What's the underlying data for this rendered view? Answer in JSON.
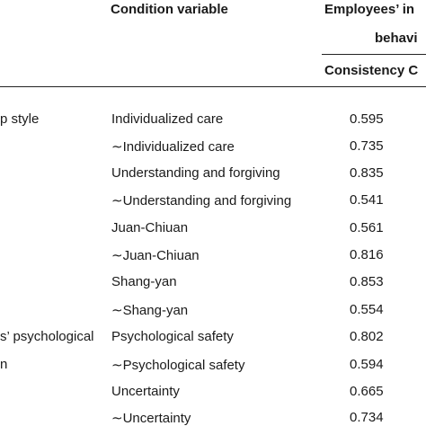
{
  "header": {
    "condition_variable": "Condition variable",
    "outcome_line1": "Employees’ in",
    "outcome_line2": "behavi",
    "consistency": "Consistency C"
  },
  "categories": [
    {
      "label": "p style"
    },
    {
      "label": "s’ psychological"
    },
    {
      "label": "n"
    }
  ],
  "rows": [
    {
      "condition": "Individualized care",
      "value": "0.595"
    },
    {
      "condition": "∼Individualized care",
      "value": "0.735"
    },
    {
      "condition": "Understanding and forgiving",
      "value": "0.835"
    },
    {
      "condition": "∼Understanding and forgiving",
      "value": "0.541"
    },
    {
      "condition": "Juan-Chiuan",
      "value": "0.561"
    },
    {
      "condition": "∼Juan-Chiuan",
      "value": "0.816"
    },
    {
      "condition": "Shang-yan",
      "value": "0.853"
    },
    {
      "condition": "∼Shang-yan",
      "value": "0.554"
    },
    {
      "condition": "Psychological safety",
      "value": "0.802"
    },
    {
      "condition": "∼Psychological safety",
      "value": "0.594"
    },
    {
      "condition": "Uncertainty",
      "value": "0.665"
    },
    {
      "condition": "∼Uncertainty",
      "value": "0.734"
    }
  ]
}
